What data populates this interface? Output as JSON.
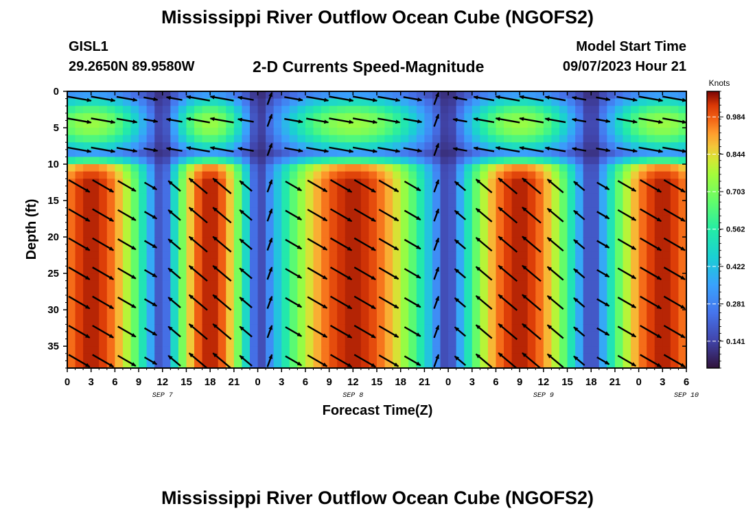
{
  "header": {
    "title": "Mississippi River Outflow Ocean Cube (NGOFS2)",
    "station": "GISL1",
    "coords": "29.2650N  89.9580W",
    "subtitle": "2-D Currents Speed-Magnitude",
    "model_start_label": "Model Start Time",
    "model_start_value": "09/07/2023 Hour 21",
    "footer_title": "Mississippi River Outflow Ocean Cube (NGOFS2)"
  },
  "chart_data": {
    "type": "heatmap",
    "title": "2-D Currents Speed-Magnitude",
    "xlabel": "Forecast Time(Z)",
    "ylabel": "Depth (ft)",
    "x_tick_labels": [
      "0",
      "3",
      "6",
      "9",
      "12",
      "15",
      "18",
      "21",
      "0",
      "3",
      "6",
      "9",
      "12",
      "15",
      "18",
      "21",
      "0",
      "3",
      "6",
      "9",
      "12",
      "15",
      "18",
      "21",
      "0",
      "3",
      "6"
    ],
    "day_labels": [
      {
        "label": "SEP 7",
        "hour": 12
      },
      {
        "label": "SEP 8",
        "hour": 36
      },
      {
        "label": "SEP 9",
        "hour": 60
      },
      {
        "label": "SEP 10",
        "hour": 78
      }
    ],
    "xlim_hours": [
      0,
      78
    ],
    "ylim_ft": [
      0,
      38
    ],
    "y_ticks": [
      0,
      5,
      10,
      15,
      20,
      25,
      30,
      35
    ],
    "y_inverted": true,
    "colorbar": {
      "unit": "Knots",
      "range": [
        0.04,
        1.08
      ],
      "ticks": [
        "0.984",
        "0.844",
        "0.703",
        "0.562",
        "0.422",
        "0.281",
        "0.141"
      ]
    },
    "surface_layer": {
      "depth_top_ft": 0,
      "depth_bottom_ft": 9,
      "max_speed_knots": 0.75
    },
    "subsurface_layer": {
      "depth_top_ft": 10,
      "depth_bottom_ft": 38,
      "max_speed_knots": 1.05
    },
    "slack_minima_hours": [
      12,
      24,
      48,
      66
    ],
    "flood_peaks_hours": [
      2,
      20,
      38,
      56,
      74
    ],
    "vector_rows_ft": [
      1,
      4,
      8,
      13,
      17,
      21,
      25,
      29,
      33,
      37
    ]
  }
}
